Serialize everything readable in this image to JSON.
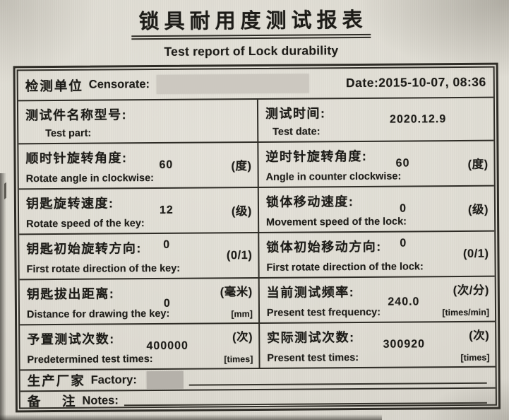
{
  "title": {
    "zh": "锁具耐用度测试报表",
    "en": "Test report of Lock durability"
  },
  "header": {
    "label_zh": "检测单位",
    "label_en": "Censorate:",
    "date": "Date:2015-10-07, 08:36"
  },
  "rows": [
    {
      "left": {
        "zh": "测试件名称型号:",
        "en": "Test part:"
      },
      "right": {
        "zh": "测试时间:",
        "en": "Test date:",
        "value": "2020.12.9"
      }
    },
    {
      "left": {
        "zh": "顺时针旋转角度:",
        "en": "Rotate angle in clockwise:",
        "value": "60",
        "unit_zh": "(度)"
      },
      "right": {
        "zh": "逆时针旋转角度:",
        "en": "Angle in counter clockwise:",
        "value": "60",
        "unit_zh": "(度)"
      }
    },
    {
      "left": {
        "zh": "钥匙旋转速度:",
        "en": "Rotate speed of the key:",
        "value": "12",
        "unit_zh": "(级)"
      },
      "right": {
        "zh": "锁体移动速度:",
        "en": "Movement speed of the lock:",
        "value": "0",
        "unit_zh": "(级)"
      }
    },
    {
      "left": {
        "zh": "钥匙初始旋转方向:",
        "en": "First rotate direction of the key:",
        "value": "0",
        "unit_zh": "(0/1)"
      },
      "right": {
        "zh": "锁体初始移动方向:",
        "en": "First rotate direction of the lock:",
        "value": "0",
        "unit_zh": "(0/1)"
      }
    },
    {
      "left": {
        "zh": "钥匙拔出距离:",
        "en": "Distance for drawing the key:",
        "value": "0",
        "unit_zh": "(毫米)",
        "unit_en": "[mm]"
      },
      "right": {
        "zh": "当前测试频率:",
        "en": "Present test frequency:",
        "value": "240.0",
        "unit_zh": "(次/分)",
        "unit_en": "[times/min]"
      }
    },
    {
      "left": {
        "zh": "予置测试次数:",
        "en": "Predetermined test times:",
        "value": "400000",
        "unit_zh": "(次)",
        "unit_en": "[times]"
      },
      "right": {
        "zh": "实际测试次数:",
        "en": "Present test times:",
        "value": "300920",
        "unit_zh": "(次)",
        "unit_en": "[times]"
      }
    }
  ],
  "factory": {
    "label_zh": "生产厂家",
    "label_en": "Factory:"
  },
  "notes": {
    "label_zh": "备    注",
    "label_en": "Notes:"
  },
  "colors": {
    "paper": "#dfdcd3",
    "ink": "#1d1c18",
    "border": "#2e2c26",
    "redaction_header": "#ccc8c0",
    "redaction_factory": "#b5b1aa"
  }
}
